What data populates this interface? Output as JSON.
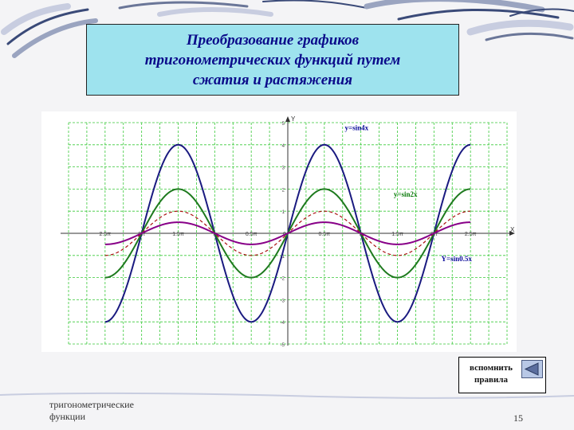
{
  "slide": {
    "title_lines": [
      "Преобразование графиков",
      "тригонометрических функций путем",
      "сжатия и растяжения"
    ],
    "footer_text_lines": [
      "тригонометрические",
      "функции"
    ],
    "page_number": "15",
    "recall_button": {
      "label_lines": [
        "вспомнить",
        "правила"
      ],
      "icon": "back-arrow-icon"
    }
  },
  "chart_data": {
    "type": "line",
    "xlim": [
      -3.0,
      3.0
    ],
    "ylim": [
      -5,
      5
    ],
    "y_ticks": [
      "5",
      "4",
      "3",
      "2",
      "1",
      "-1",
      "-2",
      "-3",
      "-4",
      "-5"
    ],
    "x_tick_labels": [
      "2.5π",
      "2π",
      "1.5π",
      "π",
      "0.5π",
      "0",
      "0.5π",
      "π",
      "1.5π",
      "2π",
      "2.5π"
    ],
    "x_tick_values": [
      -2.5,
      -2.0,
      -1.5,
      -1.0,
      -0.5,
      0,
      0.5,
      1.0,
      1.5,
      2.0,
      2.5
    ],
    "x_axis_label": "X",
    "y_axis_label": "Y",
    "grid": true,
    "series": [
      {
        "name": "y=sin4x",
        "amplitude": 4,
        "period_pi": 2,
        "color": "#1a1a80",
        "dashed": false
      },
      {
        "name": "y=sin2x",
        "amplitude": 2,
        "period_pi": 2,
        "color": "#1e7a1e",
        "dashed": false
      },
      {
        "name": "",
        "amplitude": 1,
        "period_pi": 2,
        "color": "#aa1111",
        "dashed": true
      },
      {
        "name": "Y=sin0.5x",
        "amplitude": 0.5,
        "period_pi": 2,
        "color": "#880088",
        "dashed": false
      }
    ]
  }
}
